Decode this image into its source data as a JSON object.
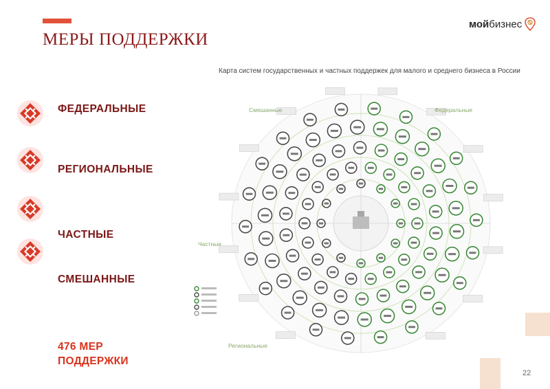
{
  "slide": {
    "title": "МЕРЫ ПОДДЕРЖКИ",
    "page_number": "22",
    "accent_color": "#e2523b",
    "title_color": "#8a1a1a"
  },
  "logo": {
    "part_bold": "мой",
    "part_regular": "бизнес"
  },
  "categories": [
    {
      "label": "ФЕДЕРАЛЬНЫЕ",
      "icon": "ornament-icon"
    },
    {
      "label": "РЕГИОНАЛЬНЫЕ",
      "icon": "ornament-icon"
    },
    {
      "label": "ЧАСТНЫЕ",
      "icon": "ornament-icon"
    },
    {
      "label": "СМЕШАННЫЕ",
      "icon": "ornament-icon"
    }
  ],
  "total": {
    "text": "476 МЕР ПОДДЕРЖКИ"
  },
  "map": {
    "title": "Карта систем государственных и частных поддержек для малого и среднего бизнеса в России",
    "sectors": [
      "Смешанные",
      "Федеральные",
      "Частные",
      "Региональные"
    ]
  }
}
